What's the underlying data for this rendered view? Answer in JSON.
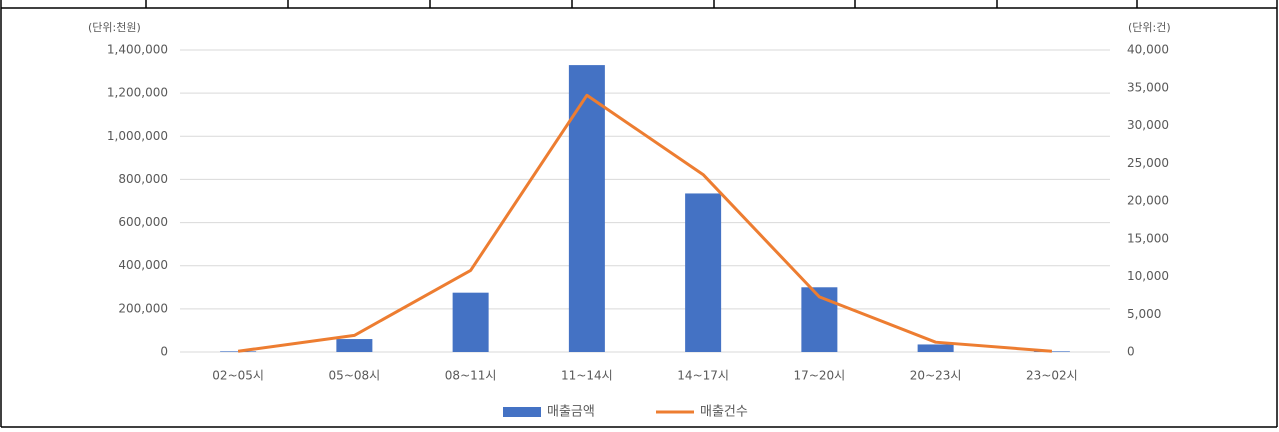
{
  "chart_data": {
    "type": "bar",
    "y_unit": "(단위:천원)",
    "y2_unit": "(단위:건)",
    "categories": [
      "02~05시",
      "05~08시",
      "08~11시",
      "11~14시",
      "14~17시",
      "17~20시",
      "20~23시",
      "23~02시"
    ],
    "series": [
      {
        "name": "매출금액",
        "type": "bar",
        "color": "#4472c4",
        "values": [
          3000,
          60000,
          275000,
          1330000,
          735000,
          300000,
          35000,
          3000
        ]
      },
      {
        "name": "매출건수",
        "type": "line",
        "axis": "y2",
        "color": "#ed7d31",
        "values": [
          100,
          2200,
          10800,
          34000,
          23500,
          7300,
          1300,
          100
        ]
      }
    ],
    "ylim": [
      0,
      1400000
    ],
    "yticks": [
      0,
      {
        "value": 200000,
        "label": "200,000"
      },
      {
        "value": 400000,
        "label": "400,000"
      },
      {
        "value": 600000,
        "label": "600,000"
      },
      {
        "value": 800000,
        "label": "800,000"
      },
      {
        "value": 1000000,
        "label": "1,000,000"
      },
      {
        "value": 1200000,
        "label": "1,200,000"
      },
      {
        "value": 1400000,
        "label": "1,400,000"
      }
    ],
    "y2lim": [
      0,
      40000
    ],
    "y2ticks": [
      0,
      {
        "value": 5000,
        "label": "5,000"
      },
      {
        "value": 10000,
        "label": "10,000"
      },
      {
        "value": 15000,
        "label": "15,000"
      },
      {
        "value": 20000,
        "label": "20,000"
      },
      {
        "value": 25000,
        "label": "25,000"
      },
      {
        "value": 30000,
        "label": "30,000"
      },
      {
        "value": 35000,
        "label": "35,000"
      },
      {
        "value": 40000,
        "label": "40,000"
      }
    ],
    "grid": true,
    "legend": "bottom"
  }
}
